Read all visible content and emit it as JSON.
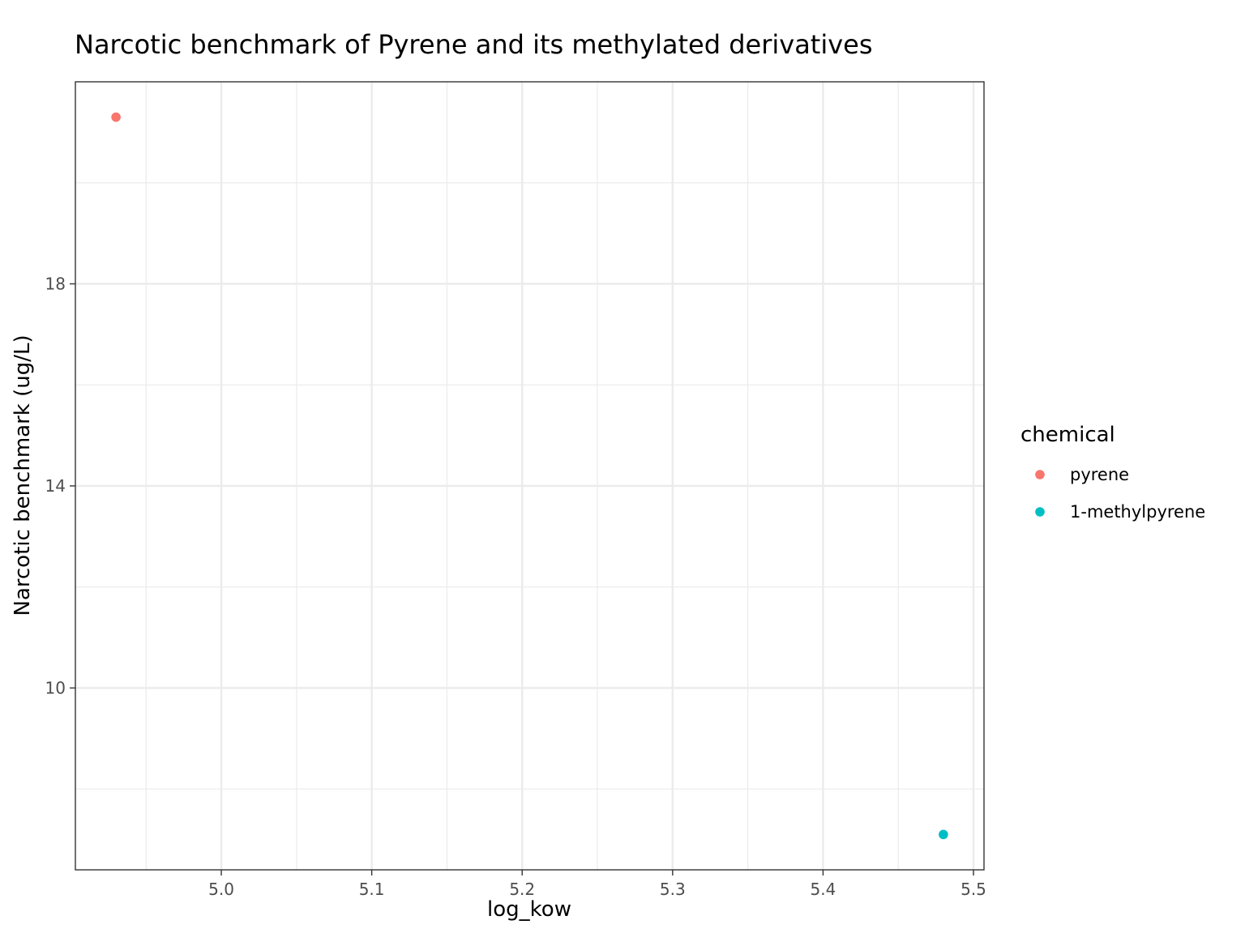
{
  "chart_data": {
    "type": "scatter",
    "title": "Narcotic benchmark of Pyrene and its methylated derivatives",
    "xlabel": "log_kow",
    "ylabel": "Narcotic benchmark (ug/L)",
    "xlim": [
      4.903,
      5.507
    ],
    "ylim": [
      6.4,
      22.0
    ],
    "x_ticks": [
      5.0,
      5.1,
      5.2,
      5.3,
      5.4,
      5.5
    ],
    "x_tick_labels": [
      "5.0",
      "5.1",
      "5.2",
      "5.3",
      "5.4",
      "5.5"
    ],
    "y_ticks": [
      10,
      14,
      18
    ],
    "y_tick_labels": [
      "10",
      "14",
      "18"
    ],
    "grid": true,
    "legend": {
      "title": "chemical",
      "position": "right"
    },
    "series": [
      {
        "name": "pyrene",
        "color": "#F8766D",
        "points": [
          {
            "x": 4.93,
            "y": 21.3
          }
        ]
      },
      {
        "name": "1-methylpyrene",
        "color": "#00BFC4",
        "points": [
          {
            "x": 5.48,
            "y": 7.1
          }
        ]
      }
    ]
  }
}
